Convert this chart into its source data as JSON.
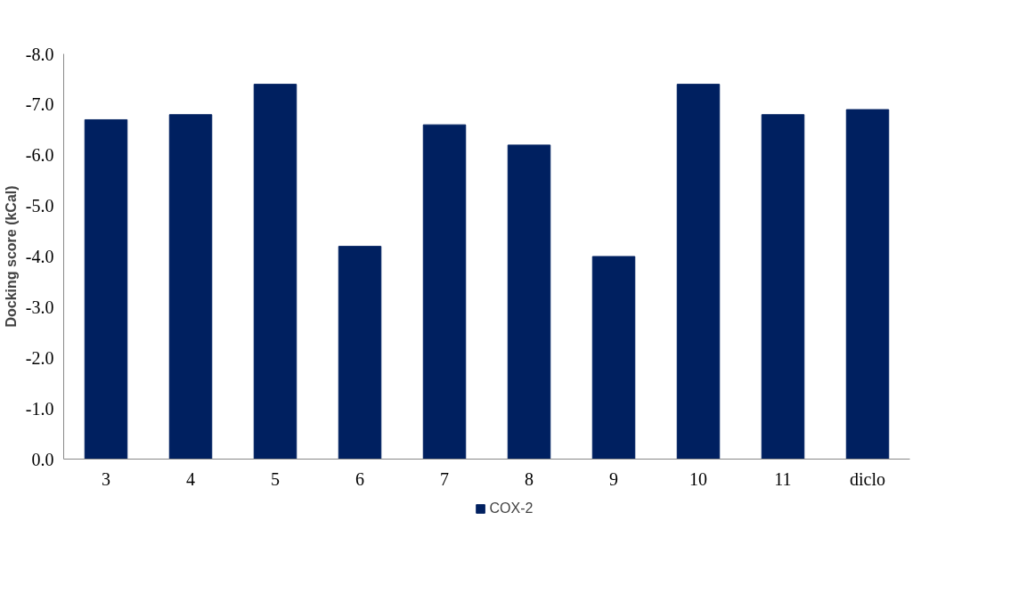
{
  "chart_data": {
    "type": "bar",
    "ylabel": "Docking score (kCal)",
    "categories": [
      "3",
      "4",
      "5",
      "6",
      "7",
      "8",
      "9",
      "10",
      "11",
      "diclo"
    ],
    "series": [
      {
        "name": "COX-2",
        "color": "#002060",
        "values": [
          -6.7,
          -6.8,
          -7.4,
          -4.2,
          -6.6,
          -6.2,
          -4.0,
          -7.4,
          -6.8,
          -6.9
        ]
      }
    ],
    "ylim": [
      0,
      -8
    ],
    "yticks": [
      {
        "value": 0,
        "label": "0.0"
      },
      {
        "value": -1,
        "label": "-1.0"
      },
      {
        "value": -2,
        "label": "-2.0"
      },
      {
        "value": -3,
        "label": "-3.0"
      },
      {
        "value": -4,
        "label": "-4.0"
      },
      {
        "value": -5,
        "label": "-5.0"
      },
      {
        "value": -6,
        "label": "-6.0"
      },
      {
        "value": -7,
        "label": "-7.0"
      },
      {
        "value": -8,
        "label": "-8.0"
      }
    ],
    "grid": false,
    "legend": "bottom"
  }
}
